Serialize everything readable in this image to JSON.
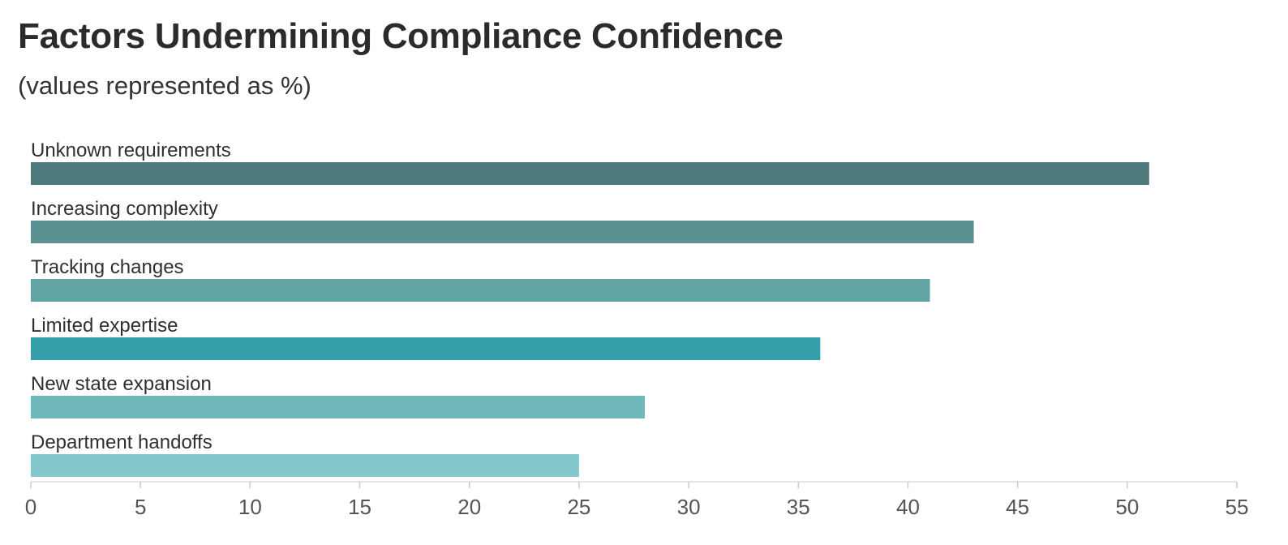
{
  "chart_data": {
    "type": "bar",
    "orientation": "horizontal",
    "title": "Factors Undermining Compliance Confidence",
    "subtitle": "(values represented as %)",
    "categories": [
      "Unknown requirements",
      "Increasing complexity",
      "Tracking changes",
      "Limited expertise",
      "New state expansion",
      "Department handoffs"
    ],
    "values": [
      51,
      43,
      41,
      36,
      28,
      25
    ],
    "colors": [
      "#4f7a7b",
      "#5b9191",
      "#62a3a4",
      "#349fa9",
      "#6fb8ba",
      "#84c8cb"
    ],
    "xlabel": "",
    "ylabel": "",
    "xlim": [
      0,
      55
    ],
    "xticks": [
      "0",
      "5",
      "10",
      "15",
      "20",
      "25",
      "30",
      "35",
      "40",
      "45",
      "50",
      "55"
    ],
    "grid": false,
    "legend": "none"
  }
}
